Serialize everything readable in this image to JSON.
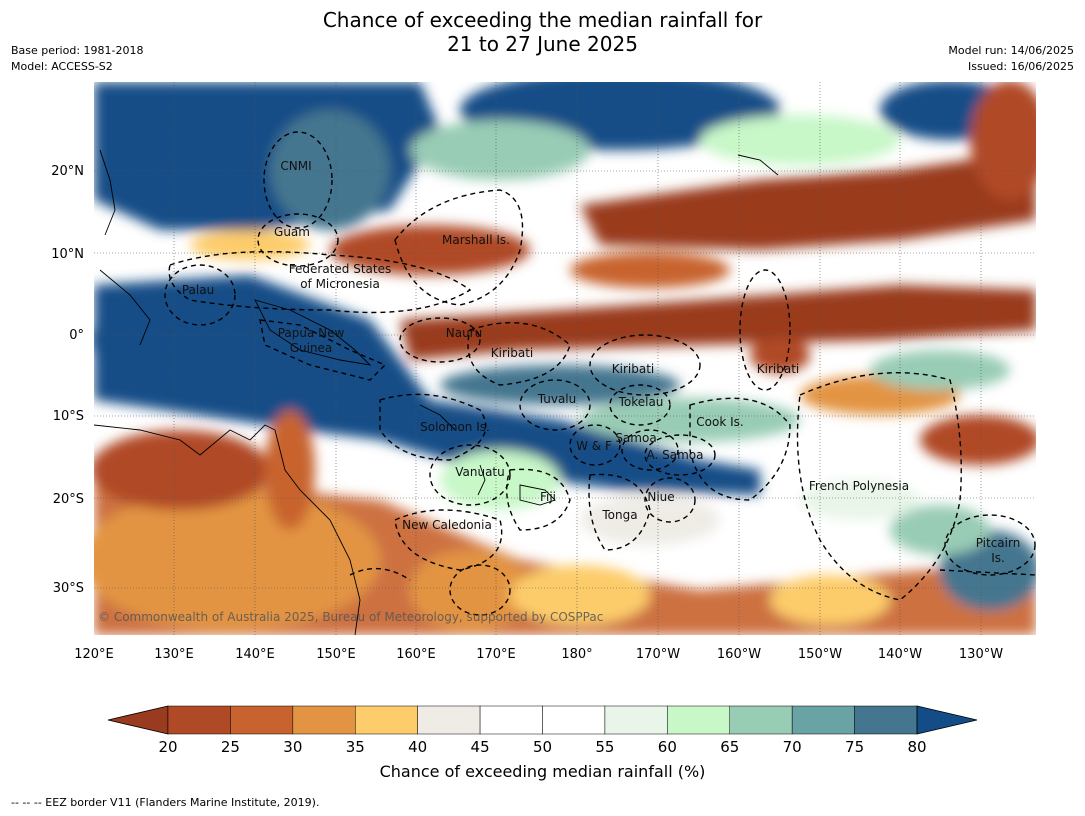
{
  "title": {
    "line1": "Chance of exceeding the median rainfall for",
    "line2": "21 to 27 June 2025"
  },
  "meta_left": {
    "base_period": "Base period: 1981-2018",
    "model": "Model: ACCESS-S2"
  },
  "meta_right": {
    "model_run": "Model run: 14/06/2025",
    "issued": "Issued: 16/06/2025"
  },
  "copyright": "© Commonwealth of Australia 2025, Bureau of Meteorology, supported by COSPPac",
  "lon_ticks": [
    "120°E",
    "130°E",
    "140°E",
    "150°E",
    "160°E",
    "170°E",
    "180°",
    "170°W",
    "160°W",
    "150°W",
    "140°W",
    "130°W"
  ],
  "lat_ticks": [
    "20°N",
    "10°N",
    "0°",
    "10°S",
    "20°S",
    "30°S"
  ],
  "regions": [
    "CNMI",
    "Guam",
    "Marshall Is.",
    "Federated States",
    "of Micronesia",
    "Palau",
    "Nauru",
    "Papua New",
    "Guinea",
    "Kiribati",
    "Kiribati",
    "Kiribati",
    "Tuvalu",
    "Tokelau",
    "Cook Is.",
    "Solomon Is.",
    "W & F",
    "Samoa",
    "A. Samoa",
    "Vanuatu",
    "Fiji",
    "Niue",
    "French Polynesia",
    "Tonga",
    "New Caledonia",
    "Pitcairn",
    "Is."
  ],
  "colorbar": {
    "title": "Chance of exceeding median rainfall (%)",
    "ticks": [
      "20",
      "25",
      "30",
      "35",
      "40",
      "45",
      "50",
      "55",
      "60",
      "65",
      "70",
      "75",
      "80"
    ],
    "colors": [
      "#9a3a1f",
      "#b04a26",
      "#c8632f",
      "#e39442",
      "#fdcc6b",
      "#efece6",
      "#ffffff",
      "#ffffff",
      "#e8f5e8",
      "#c8f7c8",
      "#99ccb5",
      "#6aa3a5",
      "#44768f",
      "#124d87"
    ]
  },
  "footnote": "--  --  -- EEZ border V11 (Flanders Marine Institute, 2019)."
}
